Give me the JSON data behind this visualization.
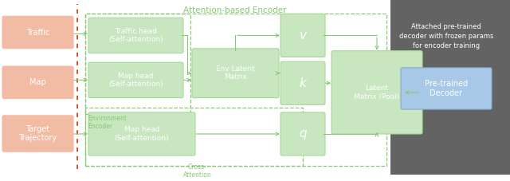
{
  "fig_width": 6.4,
  "fig_height": 2.27,
  "dpi": 100,
  "bg_main": "#ffffff",
  "bg_right_panel": "#636363",
  "salmon_box_color": "#f2bba4",
  "salmon_box_edge": "#f2bba4",
  "green_box_color": "#c8e6c0",
  "green_box_edge": "#a8d898",
  "blue_box_color": "#a8c8e8",
  "blue_box_edge": "#88aad0",
  "dashed_red_color": "#c84820",
  "dashed_green_color": "#88c870",
  "arrow_color": "#88c870",
  "title": "Attention-based Encoder",
  "right_text": "Attached pre-trained\ndecoder with frozen params\nfor encoder training",
  "inputs": [
    "Traffic",
    "Map",
    "Target\nTrajectory"
  ],
  "env_box_label": "Environment\nEncoder",
  "cross_att_label": "Cross-\nAttention",
  "boxes": {
    "traffic_head": "Traffic head\n(Self-attention)",
    "map_head_env": "Map head\n(Self-attention)",
    "env_latent": "Env Latent\nMatrix",
    "v_box": "v",
    "k_box": "k",
    "q_box": "q",
    "map_head_cross": "Map head\n(Self-attention)",
    "latent_pool": "Latent\nMatrix (Pool)",
    "pretrained": "Pre-trained\nDecoder"
  }
}
